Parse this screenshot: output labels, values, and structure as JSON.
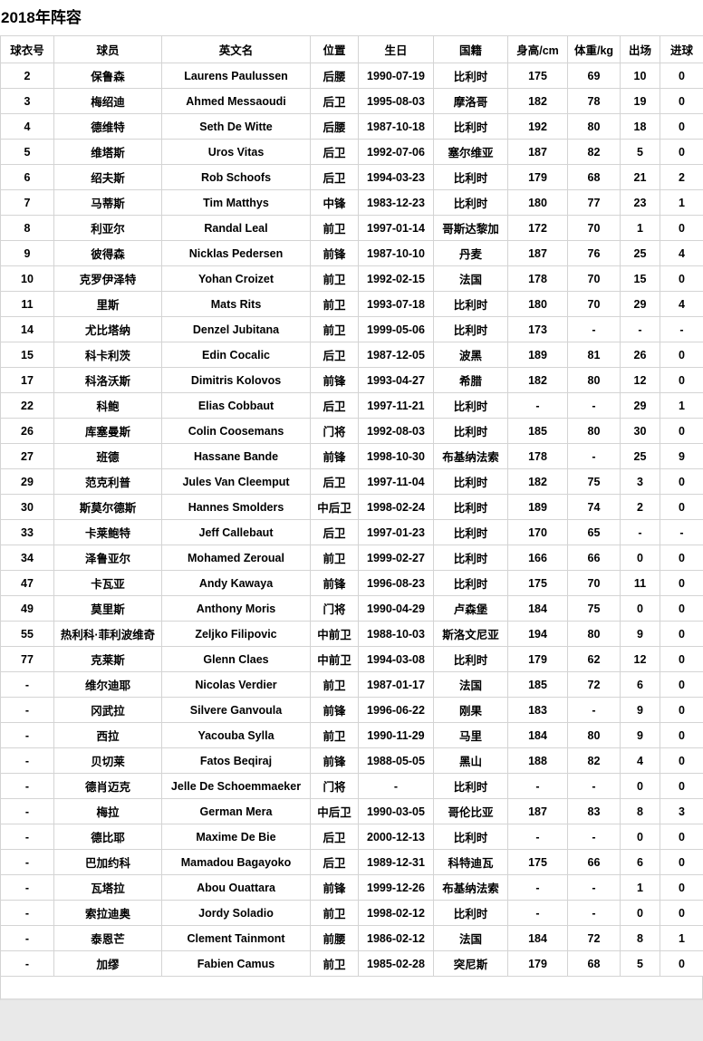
{
  "page": {
    "title": "2018年阵容"
  },
  "table": {
    "columns": [
      "球衣号",
      "球员",
      "英文名",
      "位置",
      "生日",
      "国籍",
      "身高/cm",
      "体重/kg",
      "出场",
      "进球"
    ],
    "rows": [
      [
        "2",
        "保鲁森",
        "Laurens Paulussen",
        "后腰",
        "1990-07-19",
        "比利时",
        "175",
        "69",
        "10",
        "0"
      ],
      [
        "3",
        "梅绍迪",
        "Ahmed Messaoudi",
        "后卫",
        "1995-08-03",
        "摩洛哥",
        "182",
        "78",
        "19",
        "0"
      ],
      [
        "4",
        "德维特",
        "Seth De Witte",
        "后腰",
        "1987-10-18",
        "比利时",
        "192",
        "80",
        "18",
        "0"
      ],
      [
        "5",
        "维塔斯",
        "Uros Vitas",
        "后卫",
        "1992-07-06",
        "塞尔维亚",
        "187",
        "82",
        "5",
        "0"
      ],
      [
        "6",
        "绍夫斯",
        "Rob Schoofs",
        "后卫",
        "1994-03-23",
        "比利时",
        "179",
        "68",
        "21",
        "2"
      ],
      [
        "7",
        "马蒂斯",
        "Tim Matthys",
        "中锋",
        "1983-12-23",
        "比利时",
        "180",
        "77",
        "23",
        "1"
      ],
      [
        "8",
        "利亚尔",
        "Randal Leal",
        "前卫",
        "1997-01-14",
        "哥斯达黎加",
        "172",
        "70",
        "1",
        "0"
      ],
      [
        "9",
        "彼得森",
        "Nicklas Pedersen",
        "前锋",
        "1987-10-10",
        "丹麦",
        "187",
        "76",
        "25",
        "4"
      ],
      [
        "10",
        "克罗伊泽特",
        "Yohan Croizet",
        "前卫",
        "1992-02-15",
        "法国",
        "178",
        "70",
        "15",
        "0"
      ],
      [
        "11",
        "里斯",
        "Mats Rits",
        "前卫",
        "1993-07-18",
        "比利时",
        "180",
        "70",
        "29",
        "4"
      ],
      [
        "14",
        "尤比塔纳",
        "Denzel Jubitana",
        "前卫",
        "1999-05-06",
        "比利时",
        "173",
        "-",
        "-",
        "-"
      ],
      [
        "15",
        "科卡利茨",
        "Edin Cocalic",
        "后卫",
        "1987-12-05",
        "波黑",
        "189",
        "81",
        "26",
        "0"
      ],
      [
        "17",
        "科洛沃斯",
        "Dimitris Kolovos",
        "前锋",
        "1993-04-27",
        "希腊",
        "182",
        "80",
        "12",
        "0"
      ],
      [
        "22",
        "科鲍",
        "Elias Cobbaut",
        "后卫",
        "1997-11-21",
        "比利时",
        "-",
        "-",
        "29",
        "1"
      ],
      [
        "26",
        "库塞曼斯",
        "Colin Coosemans",
        "门将",
        "1992-08-03",
        "比利时",
        "185",
        "80",
        "30",
        "0"
      ],
      [
        "27",
        "班德",
        "Hassane Bande",
        "前锋",
        "1998-10-30",
        "布基纳法索",
        "178",
        "-",
        "25",
        "9"
      ],
      [
        "29",
        "范克利普",
        "Jules Van Cleemput",
        "后卫",
        "1997-11-04",
        "比利时",
        "182",
        "75",
        "3",
        "0"
      ],
      [
        "30",
        "斯莫尔德斯",
        "Hannes Smolders",
        "中后卫",
        "1998-02-24",
        "比利时",
        "189",
        "74",
        "2",
        "0"
      ],
      [
        "33",
        "卡莱鲍特",
        "Jeff Callebaut",
        "后卫",
        "1997-01-23",
        "比利时",
        "170",
        "65",
        "-",
        "-"
      ],
      [
        "34",
        "泽鲁亚尔",
        "Mohamed Zeroual",
        "前卫",
        "1999-02-27",
        "比利时",
        "166",
        "66",
        "0",
        "0"
      ],
      [
        "47",
        "卡瓦亚",
        "Andy Kawaya",
        "前锋",
        "1996-08-23",
        "比利时",
        "175",
        "70",
        "11",
        "0"
      ],
      [
        "49",
        "莫里斯",
        "Anthony Moris",
        "门将",
        "1990-04-29",
        "卢森堡",
        "184",
        "75",
        "0",
        "0"
      ],
      [
        "55",
        "热利科·菲利波维奇",
        "Zeljko Filipovic",
        "中前卫",
        "1988-10-03",
        "斯洛文尼亚",
        "194",
        "80",
        "9",
        "0"
      ],
      [
        "77",
        "克莱斯",
        "Glenn Claes",
        "中前卫",
        "1994-03-08",
        "比利时",
        "179",
        "62",
        "12",
        "0"
      ],
      [
        "-",
        "维尔迪耶",
        "Nicolas Verdier",
        "前卫",
        "1987-01-17",
        "法国",
        "185",
        "72",
        "6",
        "0"
      ],
      [
        "-",
        "冈武拉",
        "Silvere Ganvoula",
        "前锋",
        "1996-06-22",
        "刚果",
        "183",
        "-",
        "9",
        "0"
      ],
      [
        "-",
        "西拉",
        "Yacouba Sylla",
        "前卫",
        "1990-11-29",
        "马里",
        "184",
        "80",
        "9",
        "0"
      ],
      [
        "-",
        "贝切莱",
        "Fatos Beqiraj",
        "前锋",
        "1988-05-05",
        "黑山",
        "188",
        "82",
        "4",
        "0"
      ],
      [
        "-",
        "德肖迈克",
        "Jelle De Schoemmaeker",
        "门将",
        "-",
        "比利时",
        "-",
        "-",
        "0",
        "0"
      ],
      [
        "-",
        "梅拉",
        "German Mera",
        "中后卫",
        "1990-03-05",
        "哥伦比亚",
        "187",
        "83",
        "8",
        "3"
      ],
      [
        "-",
        "德比耶",
        "Maxime De Bie",
        "后卫",
        "2000-12-13",
        "比利时",
        "-",
        "-",
        "0",
        "0"
      ],
      [
        "-",
        "巴加约科",
        "Mamadou Bagayoko",
        "后卫",
        "1989-12-31",
        "科特迪瓦",
        "175",
        "66",
        "6",
        "0"
      ],
      [
        "-",
        "瓦塔拉",
        "Abou Ouattara",
        "前锋",
        "1999-12-26",
        "布基纳法索",
        "-",
        "-",
        "1",
        "0"
      ],
      [
        "-",
        "索拉迪奥",
        "Jordy Soladio",
        "前卫",
        "1998-02-12",
        "比利时",
        "-",
        "-",
        "0",
        "0"
      ],
      [
        "-",
        "泰恩芒",
        "Clement Tainmont",
        "前腰",
        "1986-02-12",
        "法国",
        "184",
        "72",
        "8",
        "1"
      ],
      [
        "-",
        "加缪",
        "Fabien Camus",
        "前卫",
        "1985-02-28",
        "突尼斯",
        "179",
        "68",
        "5",
        "0"
      ]
    ]
  }
}
